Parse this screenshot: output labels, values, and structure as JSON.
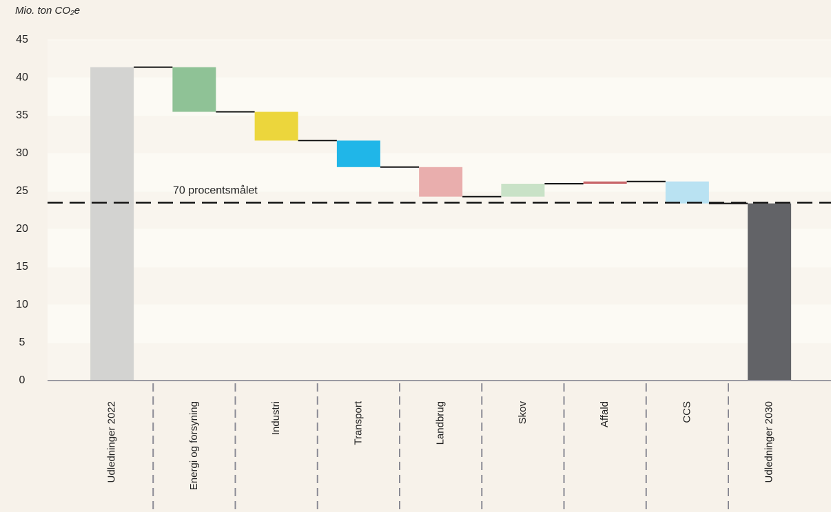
{
  "chart_data": {
    "type": "waterfall",
    "y_axis_label": "Mio. ton CO₂e",
    "categories": [
      "Udledninger 2022",
      "Energi og forsyning",
      "Industri",
      "Transport",
      "Landbrug",
      "Skov",
      "Affald",
      "CCS",
      "Udledninger 2030"
    ],
    "values": [
      41.4,
      -5.9,
      -3.8,
      -3.5,
      -3.9,
      1.7,
      0.3,
      -2.9,
      23.4
    ],
    "is_total": [
      true,
      false,
      false,
      false,
      false,
      false,
      false,
      false,
      true
    ],
    "colors": [
      "#d3d3d1",
      "#8fc296",
      "#ecd63c",
      "#20b6e8",
      "#e9aead",
      "#c9e2c7",
      "#c9676b",
      "#b9e2f2",
      "#626367"
    ],
    "ylim": [
      0,
      45
    ],
    "yticks": [
      0,
      5,
      10,
      15,
      20,
      25,
      30,
      35,
      40,
      45
    ],
    "target": {
      "value": 23.5,
      "label": "70 procentsmålet"
    }
  }
}
